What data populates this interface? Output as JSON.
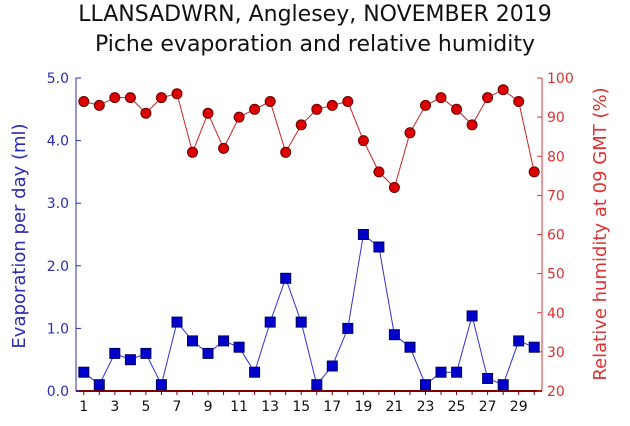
{
  "chart_data": {
    "type": "line",
    "title": "LLANSADWRN, Anglesey, NOVEMBER 2019",
    "subtitle": "Piche evaporation and relative humidity",
    "xlabel": "",
    "x": [
      1,
      2,
      3,
      4,
      5,
      6,
      7,
      8,
      9,
      10,
      11,
      12,
      13,
      14,
      15,
      16,
      17,
      18,
      19,
      20,
      21,
      22,
      23,
      24,
      25,
      26,
      27,
      28,
      29,
      30
    ],
    "x_tick_labels": [
      "1",
      "3",
      "5",
      "7",
      "9",
      "11",
      "13",
      "15",
      "17",
      "19",
      "21",
      "23",
      "25",
      "27",
      "29"
    ],
    "y_left": {
      "label": "Evaporation per day (ml)",
      "ylim": [
        0,
        5
      ],
      "tick_labels": [
        "0.0",
        "1.0",
        "2.0",
        "3.0",
        "4.0",
        "5.0"
      ],
      "color": "#2b2bb5"
    },
    "y_right": {
      "label": "Relative humidity at 09 GMT (%)",
      "ylim": [
        20,
        100
      ],
      "tick_labels": [
        "20",
        "30",
        "40",
        "50",
        "60",
        "70",
        "80",
        "90",
        "100"
      ],
      "color": "#e03030"
    },
    "series": [
      {
        "axis": "left",
        "marker": "square",
        "color": "#0000cc",
        "line_color": "#3030d0",
        "values": [
          0.3,
          0.1,
          0.6,
          0.5,
          0.6,
          0.1,
          1.1,
          0.8,
          0.6,
          0.8,
          0.7,
          0.3,
          1.1,
          1.8,
          1.1,
          0.1,
          0.4,
          1.0,
          2.5,
          2.3,
          0.9,
          0.7,
          0.1,
          0.3,
          0.3,
          1.2,
          0.2,
          0.1,
          0.8,
          0.7
        ]
      },
      {
        "axis": "right",
        "marker": "circle",
        "color": "#dd0000",
        "line_color": "#cc2222",
        "values": [
          94,
          93,
          95,
          95,
          91,
          95,
          96,
          81,
          91,
          82,
          90,
          92,
          94,
          81,
          88,
          92,
          93,
          94,
          84,
          76,
          72,
          86,
          93,
          95,
          92,
          88,
          95,
          97,
          94,
          76
        ]
      }
    ],
    "grid": false
  }
}
